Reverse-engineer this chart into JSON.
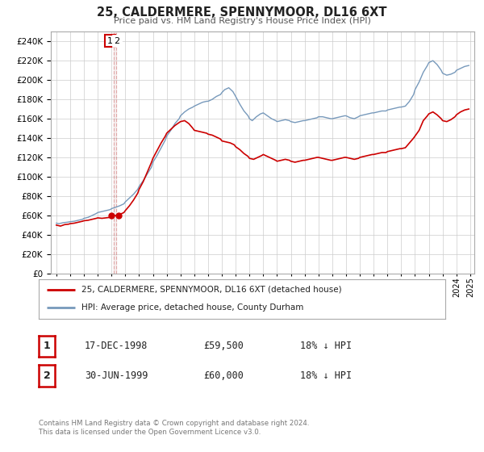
{
  "title": "25, CALDERMERE, SPENNYMOOR, DL16 6XT",
  "subtitle": "Price paid vs. HM Land Registry's House Price Index (HPI)",
  "legend_line1": "25, CALDERMERE, SPENNYMOOR, DL16 6XT (detached house)",
  "legend_line2": "HPI: Average price, detached house, County Durham",
  "table_rows": [
    {
      "num": "1",
      "date": "17-DEC-1998",
      "price": "£59,500",
      "hpi": "18% ↓ HPI"
    },
    {
      "num": "2",
      "date": "30-JUN-1999",
      "price": "£60,000",
      "hpi": "18% ↓ HPI"
    }
  ],
  "footnote1": "Contains HM Land Registry data © Crown copyright and database right 2024.",
  "footnote2": "This data is licensed under the Open Government Licence v3.0.",
  "red_color": "#cc0000",
  "blue_color": "#7799bb",
  "dashed_vline_color": "#cc6666",
  "marker_color": "#cc0000",
  "background_color": "#ffffff",
  "grid_color": "#cccccc",
  "ylim": [
    0,
    250000
  ],
  "ytick_step": 20000,
  "xmin": 1994.6,
  "xmax": 2025.3,
  "sale1_x": 1998.96,
  "sale1_price": 59500,
  "sale2_x": 1999.49,
  "sale2_price": 60000,
  "vline_x": 1999.25,
  "hpi_data": [
    [
      1995.0,
      52000
    ],
    [
      1995.2,
      51500
    ],
    [
      1995.5,
      52500
    ],
    [
      1995.8,
      53000
    ],
    [
      1996.0,
      53500
    ],
    [
      1996.3,
      54000
    ],
    [
      1996.6,
      55000
    ],
    [
      1996.9,
      56000
    ],
    [
      1997.0,
      57000
    ],
    [
      1997.3,
      58000
    ],
    [
      1997.6,
      60000
    ],
    [
      1997.9,
      62000
    ],
    [
      1998.0,
      63000
    ],
    [
      1998.3,
      64000
    ],
    [
      1998.6,
      65000
    ],
    [
      1998.9,
      66000
    ],
    [
      1999.0,
      67000
    ],
    [
      1999.3,
      68500
    ],
    [
      1999.6,
      70000
    ],
    [
      1999.9,
      72000
    ],
    [
      2000.0,
      74000
    ],
    [
      2000.3,
      78000
    ],
    [
      2000.6,
      82000
    ],
    [
      2000.9,
      87000
    ],
    [
      2001.0,
      90000
    ],
    [
      2001.3,
      96000
    ],
    [
      2001.6,
      103000
    ],
    [
      2001.9,
      110000
    ],
    [
      2002.0,
      115000
    ],
    [
      2002.3,
      122000
    ],
    [
      2002.6,
      130000
    ],
    [
      2002.9,
      138000
    ],
    [
      2003.0,
      142000
    ],
    [
      2003.3,
      148000
    ],
    [
      2003.6,
      155000
    ],
    [
      2003.9,
      160000
    ],
    [
      2004.0,
      163000
    ],
    [
      2004.3,
      167000
    ],
    [
      2004.6,
      170000
    ],
    [
      2004.9,
      172000
    ],
    [
      2005.0,
      173000
    ],
    [
      2005.3,
      175000
    ],
    [
      2005.6,
      177000
    ],
    [
      2005.9,
      178000
    ],
    [
      2006.0,
      178000
    ],
    [
      2006.3,
      180000
    ],
    [
      2006.6,
      183000
    ],
    [
      2006.9,
      185000
    ],
    [
      2007.0,
      187000
    ],
    [
      2007.2,
      190000
    ],
    [
      2007.5,
      192000
    ],
    [
      2007.8,
      188000
    ],
    [
      2008.0,
      183000
    ],
    [
      2008.3,
      175000
    ],
    [
      2008.6,
      168000
    ],
    [
      2008.9,
      163000
    ],
    [
      2009.0,
      160000
    ],
    [
      2009.2,
      158000
    ],
    [
      2009.5,
      162000
    ],
    [
      2009.8,
      165000
    ],
    [
      2010.0,
      166000
    ],
    [
      2010.3,
      163000
    ],
    [
      2010.6,
      160000
    ],
    [
      2010.9,
      158000
    ],
    [
      2011.0,
      157000
    ],
    [
      2011.3,
      158000
    ],
    [
      2011.6,
      159000
    ],
    [
      2011.9,
      158000
    ],
    [
      2012.0,
      157000
    ],
    [
      2012.3,
      156000
    ],
    [
      2012.6,
      157000
    ],
    [
      2012.9,
      158000
    ],
    [
      2013.0,
      158000
    ],
    [
      2013.3,
      159000
    ],
    [
      2013.6,
      160000
    ],
    [
      2013.9,
      161000
    ],
    [
      2014.0,
      162000
    ],
    [
      2014.3,
      162000
    ],
    [
      2014.6,
      161000
    ],
    [
      2014.9,
      160000
    ],
    [
      2015.0,
      160000
    ],
    [
      2015.3,
      161000
    ],
    [
      2015.6,
      162000
    ],
    [
      2015.9,
      163000
    ],
    [
      2016.0,
      163000
    ],
    [
      2016.3,
      161000
    ],
    [
      2016.6,
      160000
    ],
    [
      2016.9,
      162000
    ],
    [
      2017.0,
      163000
    ],
    [
      2017.3,
      164000
    ],
    [
      2017.6,
      165000
    ],
    [
      2017.9,
      166000
    ],
    [
      2018.0,
      166000
    ],
    [
      2018.3,
      167000
    ],
    [
      2018.6,
      168000
    ],
    [
      2018.9,
      168000
    ],
    [
      2019.0,
      169000
    ],
    [
      2019.3,
      170000
    ],
    [
      2019.6,
      171000
    ],
    [
      2019.9,
      172000
    ],
    [
      2020.0,
      172000
    ],
    [
      2020.3,
      173000
    ],
    [
      2020.6,
      178000
    ],
    [
      2020.9,
      185000
    ],
    [
      2021.0,
      190000
    ],
    [
      2021.3,
      198000
    ],
    [
      2021.6,
      208000
    ],
    [
      2021.9,
      215000
    ],
    [
      2022.0,
      218000
    ],
    [
      2022.3,
      220000
    ],
    [
      2022.6,
      216000
    ],
    [
      2022.9,
      210000
    ],
    [
      2023.0,
      207000
    ],
    [
      2023.3,
      205000
    ],
    [
      2023.6,
      206000
    ],
    [
      2023.9,
      208000
    ],
    [
      2024.0,
      210000
    ],
    [
      2024.3,
      212000
    ],
    [
      2024.6,
      214000
    ],
    [
      2024.9,
      215000
    ]
  ],
  "price_data": [
    [
      1995.0,
      50000
    ],
    [
      1995.3,
      49000
    ],
    [
      1995.6,
      50500
    ],
    [
      1995.9,
      51000
    ],
    [
      1996.0,
      51500
    ],
    [
      1996.3,
      52000
    ],
    [
      1996.6,
      53000
    ],
    [
      1996.9,
      54000
    ],
    [
      1997.0,
      54500
    ],
    [
      1997.3,
      55000
    ],
    [
      1997.6,
      56000
    ],
    [
      1997.9,
      57000
    ],
    [
      1998.0,
      57500
    ],
    [
      1998.3,
      57000
    ],
    [
      1998.6,
      57500
    ],
    [
      1998.9,
      58000
    ],
    [
      1998.96,
      59500
    ],
    [
      1999.49,
      60000
    ],
    [
      1999.6,
      61000
    ],
    [
      1999.9,
      63000
    ],
    [
      2000.0,
      65000
    ],
    [
      2000.3,
      70000
    ],
    [
      2000.6,
      76000
    ],
    [
      2000.9,
      83000
    ],
    [
      2001.0,
      87000
    ],
    [
      2001.3,
      95000
    ],
    [
      2001.6,
      105000
    ],
    [
      2001.9,
      115000
    ],
    [
      2002.0,
      119000
    ],
    [
      2002.3,
      127000
    ],
    [
      2002.6,
      135000
    ],
    [
      2002.9,
      142000
    ],
    [
      2003.0,
      145000
    ],
    [
      2003.3,
      149000
    ],
    [
      2003.6,
      153000
    ],
    [
      2003.9,
      156000
    ],
    [
      2004.0,
      157000
    ],
    [
      2004.3,
      158000
    ],
    [
      2004.6,
      155000
    ],
    [
      2004.9,
      150000
    ],
    [
      2005.0,
      148000
    ],
    [
      2005.3,
      147000
    ],
    [
      2005.6,
      146000
    ],
    [
      2005.9,
      145000
    ],
    [
      2006.0,
      144000
    ],
    [
      2006.3,
      143000
    ],
    [
      2006.6,
      141000
    ],
    [
      2006.9,
      139000
    ],
    [
      2007.0,
      137000
    ],
    [
      2007.3,
      136000
    ],
    [
      2007.6,
      135000
    ],
    [
      2007.9,
      133000
    ],
    [
      2008.0,
      131000
    ],
    [
      2008.3,
      128000
    ],
    [
      2008.6,
      124000
    ],
    [
      2008.9,
      121000
    ],
    [
      2009.0,
      119000
    ],
    [
      2009.3,
      118000
    ],
    [
      2009.6,
      120000
    ],
    [
      2009.9,
      122000
    ],
    [
      2010.0,
      123000
    ],
    [
      2010.3,
      121000
    ],
    [
      2010.6,
      119000
    ],
    [
      2010.9,
      117000
    ],
    [
      2011.0,
      116000
    ],
    [
      2011.3,
      117000
    ],
    [
      2011.6,
      118000
    ],
    [
      2011.9,
      117000
    ],
    [
      2012.0,
      116000
    ],
    [
      2012.3,
      115000
    ],
    [
      2012.6,
      116000
    ],
    [
      2012.9,
      117000
    ],
    [
      2013.0,
      117000
    ],
    [
      2013.3,
      118000
    ],
    [
      2013.6,
      119000
    ],
    [
      2013.9,
      120000
    ],
    [
      2014.0,
      120000
    ],
    [
      2014.3,
      119000
    ],
    [
      2014.6,
      118000
    ],
    [
      2014.9,
      117000
    ],
    [
      2015.0,
      117000
    ],
    [
      2015.3,
      118000
    ],
    [
      2015.6,
      119000
    ],
    [
      2015.9,
      120000
    ],
    [
      2016.0,
      120000
    ],
    [
      2016.3,
      119000
    ],
    [
      2016.6,
      118000
    ],
    [
      2016.9,
      119000
    ],
    [
      2017.0,
      120000
    ],
    [
      2017.3,
      121000
    ],
    [
      2017.6,
      122000
    ],
    [
      2017.9,
      123000
    ],
    [
      2018.0,
      123000
    ],
    [
      2018.3,
      124000
    ],
    [
      2018.6,
      125000
    ],
    [
      2018.9,
      125000
    ],
    [
      2019.0,
      126000
    ],
    [
      2019.3,
      127000
    ],
    [
      2019.6,
      128000
    ],
    [
      2019.9,
      129000
    ],
    [
      2020.0,
      129000
    ],
    [
      2020.3,
      130000
    ],
    [
      2020.6,
      135000
    ],
    [
      2020.9,
      140000
    ],
    [
      2021.0,
      142000
    ],
    [
      2021.3,
      148000
    ],
    [
      2021.6,
      158000
    ],
    [
      2021.9,
      163000
    ],
    [
      2022.0,
      165000
    ],
    [
      2022.3,
      167000
    ],
    [
      2022.6,
      164000
    ],
    [
      2022.9,
      160000
    ],
    [
      2023.0,
      158000
    ],
    [
      2023.3,
      157000
    ],
    [
      2023.6,
      159000
    ],
    [
      2023.9,
      162000
    ],
    [
      2024.0,
      164000
    ],
    [
      2024.3,
      167000
    ],
    [
      2024.6,
      169000
    ],
    [
      2024.9,
      170000
    ]
  ]
}
